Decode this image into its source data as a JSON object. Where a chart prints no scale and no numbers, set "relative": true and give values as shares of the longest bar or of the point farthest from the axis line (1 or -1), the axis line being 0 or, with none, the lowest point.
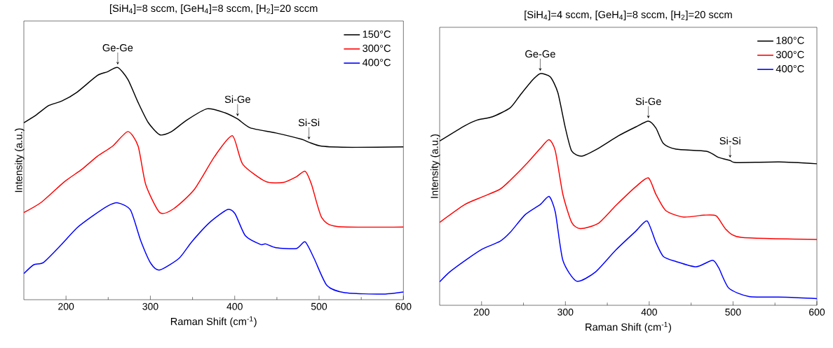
{
  "chart_data": [
    {
      "type": "line",
      "title": "[SiH$_{4}$]=8 sccm, [GeH$_{4}$]=8 sccm, [H$_{2}$]=20 sccm",
      "xlabel": "Raman Shift (cm$^{-1}$)",
      "ylabel": "Intensity (a.u.)",
      "relative": true,
      "xlim": [
        150,
        600
      ],
      "xticks": [
        200,
        300,
        400,
        500,
        600
      ],
      "legend": "top right",
      "marker": "none",
      "series": [
        {
          "name": "150°C",
          "color": "#000000",
          "x": [
            150,
            164.5,
            179.6,
            194.8,
            212.9,
            237,
            249,
            261.3,
            273.4,
            285.5,
            297.6,
            311.2,
            324.8,
            343,
            367.2,
            388.3,
            403.4,
            418.5,
            448.8,
            479,
            488,
            503.2,
            539.5,
            600
          ],
          "values": [
            0.762,
            0.795,
            0.836,
            0.855,
            0.893,
            0.965,
            0.981,
            1.0,
            0.948,
            0.849,
            0.762,
            0.71,
            0.723,
            0.773,
            0.822,
            0.805,
            0.778,
            0.74,
            0.718,
            0.691,
            0.678,
            0.661,
            0.656,
            0.658
          ]
        },
        {
          "name": "300°C",
          "color": "#ff0000",
          "x": [
            150,
            170.6,
            197.8,
            219,
            237,
            255.2,
            273.4,
            285.5,
            294.5,
            311.2,
            327.8,
            352,
            376.2,
            397.3,
            409.4,
            436.6,
            457.8,
            472.9,
            483.5,
            491.1,
            503.2,
            521.4,
            600
          ],
          "values": [
            0.375,
            0.419,
            0.507,
            0.562,
            0.617,
            0.661,
            0.724,
            0.661,
            0.496,
            0.375,
            0.392,
            0.474,
            0.617,
            0.706,
            0.584,
            0.509,
            0.505,
            0.529,
            0.553,
            0.496,
            0.353,
            0.315,
            0.313
          ]
        },
        {
          "name": "400°C",
          "color": "#0000ff",
          "x": [
            150,
            161.5,
            173.6,
            194.8,
            212.9,
            231,
            249.2,
            261.3,
            276.4,
            288.5,
            300.6,
            311.2,
            333.9,
            349,
            370.2,
            391.4,
            400.4,
            412.5,
            430.6,
            436.6,
            448.8,
            473,
            483.5,
            494.1,
            509.2,
            530.4,
            575.8,
            600
          ],
          "values": [
            0.112,
            0.15,
            0.161,
            0.238,
            0.309,
            0.359,
            0.403,
            0.417,
            0.386,
            0.255,
            0.156,
            0.128,
            0.178,
            0.249,
            0.332,
            0.388,
            0.37,
            0.276,
            0.238,
            0.24,
            0.224,
            0.22,
            0.249,
            0.178,
            0.062,
            0.03,
            0.024,
            0.033
          ]
        }
      ],
      "annotations": [
        {
          "text": "Ge-Ge",
          "x": 261.3,
          "y": 1.0
        },
        {
          "text": "Si-Ge",
          "x": 403.4,
          "y": 0.778
        },
        {
          "text": "Si-Si",
          "x": 488,
          "y": 0.678
        }
      ]
    },
    {
      "type": "line",
      "title": "[SiH$_{4}$]=4 sccm, [GeH$_{4}$]=8 sccm, [H$_{2}$]=20 sccm",
      "xlabel": "Raman Shift (cm$^{-1}$)",
      "ylabel": "Intensity (a.u.)",
      "relative": true,
      "xlim": [
        150,
        600
      ],
      "xticks": [
        200,
        300,
        400,
        500,
        600
      ],
      "legend": "top right",
      "marker": "none",
      "series": [
        {
          "name": "180°C",
          "color": "#000000",
          "x": [
            150,
            180,
            195,
            213,
            234,
            246,
            261,
            270,
            282,
            291,
            300,
            307.5,
            319.5,
            339,
            363,
            384,
            399,
            408,
            417,
            432,
            468,
            483,
            496.5,
            504,
            555,
            600
          ],
          "values": [
            0.709,
            0.775,
            0.8,
            0.814,
            0.852,
            0.907,
            0.973,
            1.0,
            0.986,
            0.918,
            0.765,
            0.666,
            0.644,
            0.677,
            0.731,
            0.77,
            0.795,
            0.765,
            0.698,
            0.674,
            0.665,
            0.638,
            0.625,
            0.616,
            0.619,
            0.611
          ]
        },
        {
          "name": "300°C",
          "color": "#ff0000",
          "x": [
            150,
            180,
            201,
            222,
            234,
            255,
            270,
            280.5,
            288,
            297,
            307.5,
            318,
            339,
            360,
            384,
            399,
            408,
            420,
            441,
            465,
            480,
            492,
            510,
            600
          ],
          "values": [
            0.358,
            0.435,
            0.468,
            0.501,
            0.539,
            0.616,
            0.677,
            0.715,
            0.666,
            0.479,
            0.358,
            0.331,
            0.353,
            0.43,
            0.512,
            0.55,
            0.479,
            0.408,
            0.381,
            0.389,
            0.386,
            0.326,
            0.293,
            0.284
          ]
        },
        {
          "name": "400°C",
          "color": "#0000ff",
          "x": [
            150,
            162,
            183,
            201,
            222,
            234,
            252,
            270,
            280.5,
            288,
            297,
            313.5,
            336,
            360,
            384,
            397.5,
            408,
            417,
            432,
            456,
            475.5,
            483,
            495,
            519,
            564,
            600
          ],
          "values": [
            0.101,
            0.144,
            0.2,
            0.243,
            0.276,
            0.314,
            0.391,
            0.435,
            0.47,
            0.402,
            0.194,
            0.104,
            0.144,
            0.238,
            0.32,
            0.364,
            0.271,
            0.21,
            0.189,
            0.166,
            0.194,
            0.161,
            0.074,
            0.038,
            0.035,
            0.029
          ]
        }
      ],
      "annotations": [
        {
          "text": "Ge-Ge",
          "x": 270,
          "y": 1.0
        },
        {
          "text": "Si-Ge",
          "x": 399,
          "y": 0.795
        },
        {
          "text": "Si-Si",
          "x": 496.5,
          "y": 0.625
        }
      ]
    }
  ]
}
